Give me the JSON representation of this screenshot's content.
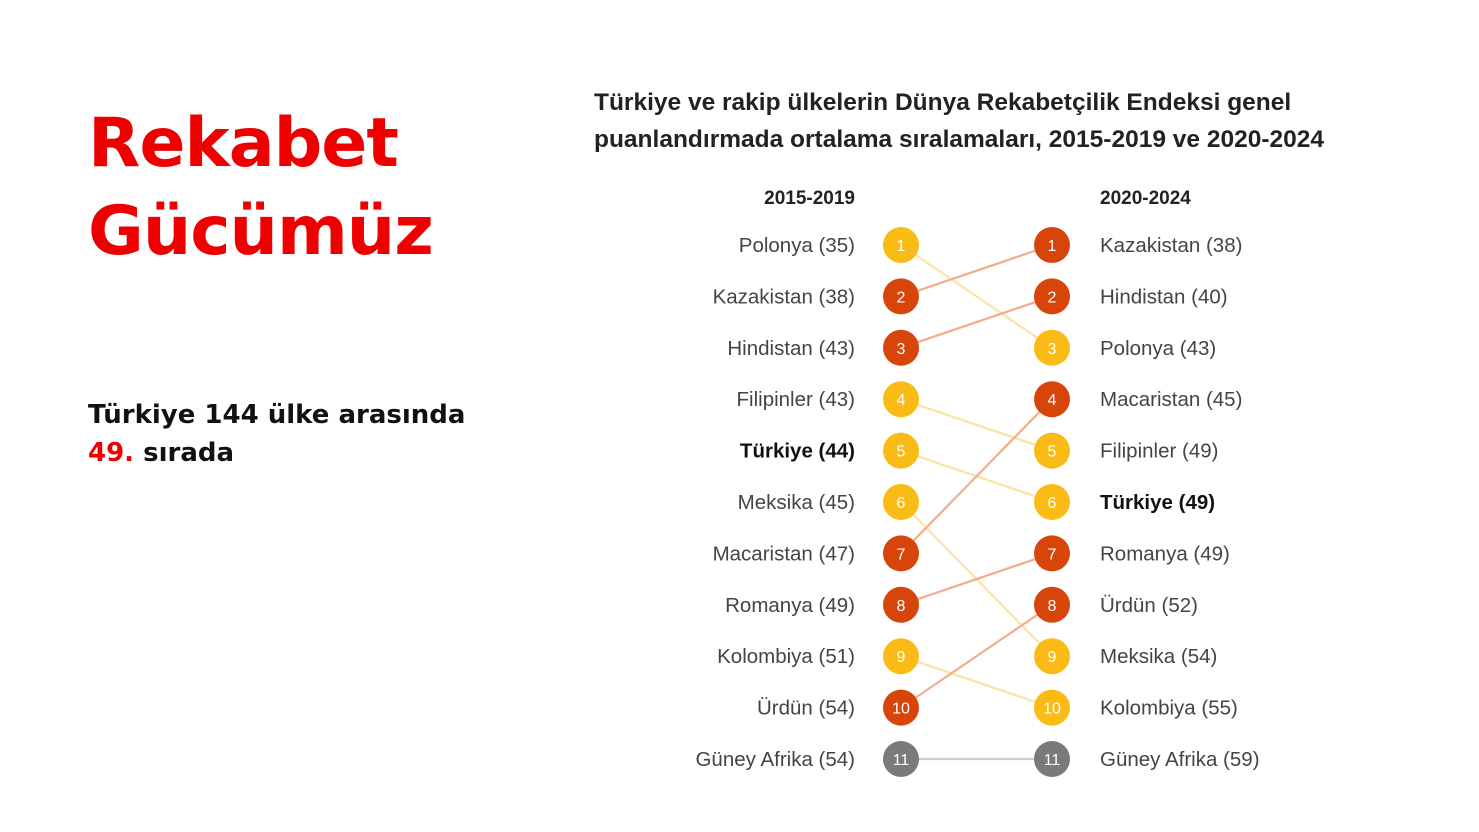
{
  "slide": {
    "title_lines": [
      "Rekabet",
      "Gücümüz"
    ],
    "subtitle_line1": "Türkiye 144 ülke arasında",
    "subtitle_rank": "49.",
    "subtitle_rest": " sırada"
  },
  "colors": {
    "accent_red": "#ee0000",
    "rank_yellow": "#fbbb16",
    "rank_orange": "#d8450b",
    "rank_gray": "#7a7a7a",
    "line_yellow": "#fbe3a8",
    "line_orange": "#f3ad8c",
    "line_gray": "#cfcfcf"
  },
  "chart_data": {
    "type": "bump",
    "title_lines": [
      "Türkiye ve rakip ülkelerin Dünya Rekabetçilik Endeksi genel",
      "puanlandırmada ortalama sıralamaları, 2015-2019 ve 2020-2024"
    ],
    "periods": [
      "2015-2019",
      "2020-2024"
    ],
    "highlight": "Türkiye",
    "countries": [
      {
        "name": "Polonya",
        "rank_2015_2019": 1,
        "avg_2015_2019": 35,
        "rank_2020_2024": 3,
        "avg_2020_2024": 43,
        "trend": "down"
      },
      {
        "name": "Kazakistan",
        "rank_2015_2019": 2,
        "avg_2015_2019": 38,
        "rank_2020_2024": 1,
        "avg_2020_2024": 38,
        "trend": "up"
      },
      {
        "name": "Hindistan",
        "rank_2015_2019": 3,
        "avg_2015_2019": 43,
        "rank_2020_2024": 2,
        "avg_2020_2024": 40,
        "trend": "up"
      },
      {
        "name": "Filipinler",
        "rank_2015_2019": 4,
        "avg_2015_2019": 43,
        "rank_2020_2024": 5,
        "avg_2020_2024": 49,
        "trend": "down"
      },
      {
        "name": "Türkiye",
        "rank_2015_2019": 5,
        "avg_2015_2019": 44,
        "rank_2020_2024": 6,
        "avg_2020_2024": 49,
        "trend": "down"
      },
      {
        "name": "Meksika",
        "rank_2015_2019": 6,
        "avg_2015_2019": 45,
        "rank_2020_2024": 9,
        "avg_2020_2024": 54,
        "trend": "down"
      },
      {
        "name": "Macaristan",
        "rank_2015_2019": 7,
        "avg_2015_2019": 47,
        "rank_2020_2024": 4,
        "avg_2020_2024": 45,
        "trend": "up"
      },
      {
        "name": "Romanya",
        "rank_2015_2019": 8,
        "avg_2015_2019": 49,
        "rank_2020_2024": 7,
        "avg_2020_2024": 49,
        "trend": "up"
      },
      {
        "name": "Kolombiya",
        "rank_2015_2019": 9,
        "avg_2015_2019": 51,
        "rank_2020_2024": 10,
        "avg_2020_2024": 55,
        "trend": "down"
      },
      {
        "name": "Ürdün",
        "rank_2015_2019": 10,
        "avg_2015_2019": 54,
        "rank_2020_2024": 8,
        "avg_2020_2024": 52,
        "trend": "up"
      },
      {
        "name": "Güney Afrika",
        "rank_2015_2019": 11,
        "avg_2015_2019": 54,
        "rank_2020_2024": 11,
        "avg_2020_2024": 59,
        "trend": "same"
      }
    ]
  }
}
